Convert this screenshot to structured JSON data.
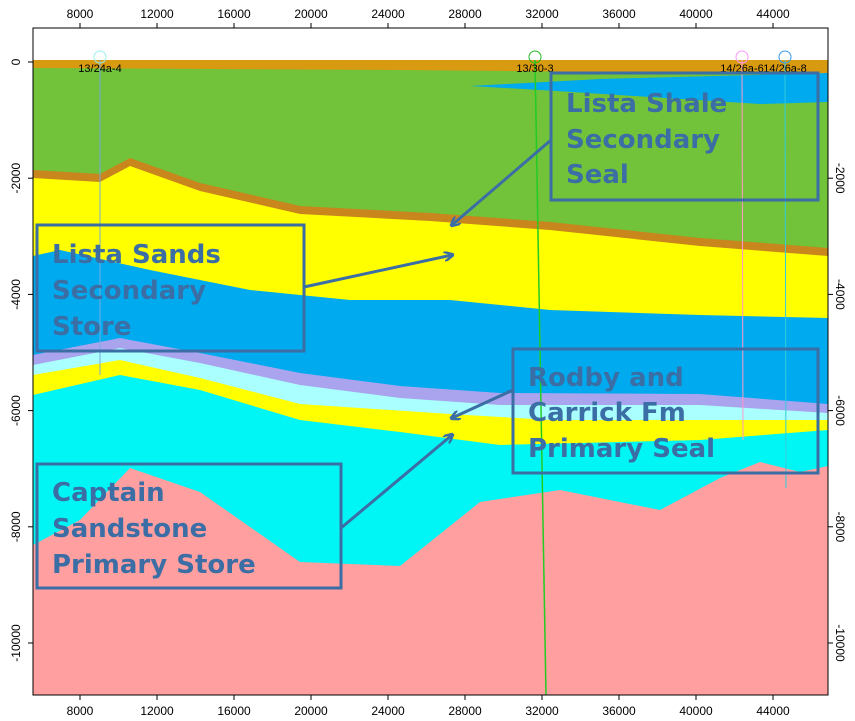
{
  "x_axis": {
    "ticks": [
      8000,
      12000,
      16000,
      20000,
      24000,
      28000,
      32000,
      36000,
      40000,
      44000
    ]
  },
  "y_axis": {
    "left_ticks": [
      0,
      -2000,
      -4000,
      -6000,
      -8000,
      -10000
    ],
    "right_ticks": [
      -2000,
      -4000,
      -6000,
      -8000,
      -10000
    ]
  },
  "wells": [
    {
      "label": "13/24a-4"
    },
    {
      "label": "13/30-3"
    },
    {
      "label": "14/26a-6"
    },
    {
      "label": "14/26a-8"
    }
  ],
  "annotations": [
    {
      "lines": [
        "Lista Shale",
        "Secondary",
        "Seal"
      ]
    },
    {
      "lines": [
        "Lista Sands",
        "Secondary",
        "Store"
      ]
    },
    {
      "lines": [
        "Rodby and",
        "Carrick Fm",
        "Primary Seal"
      ]
    },
    {
      "lines": [
        "Captain",
        "Sandstone",
        "Primary Store"
      ]
    }
  ]
}
